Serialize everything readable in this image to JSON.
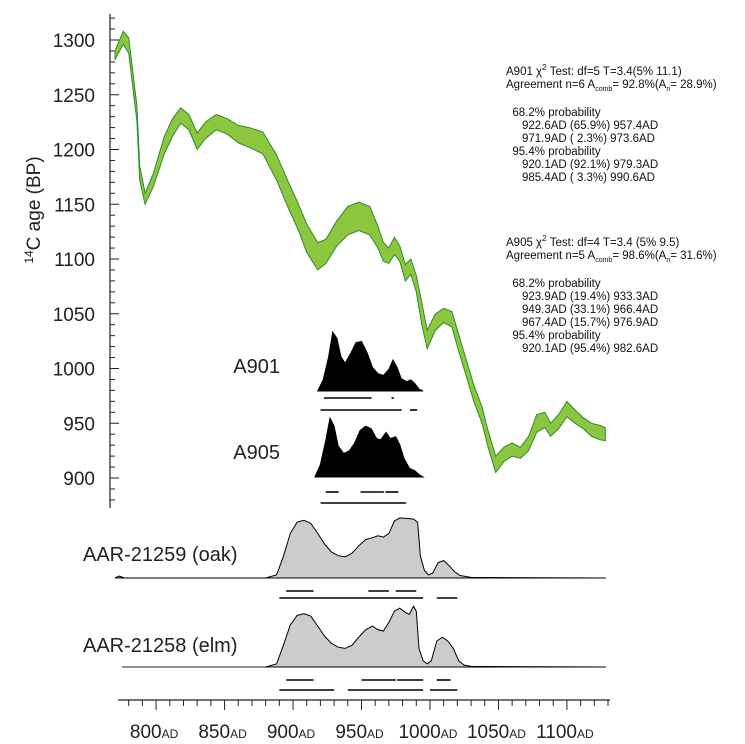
{
  "chart_data": {
    "type": "area",
    "title": "",
    "ylabel": {
      "sup": "14",
      "text": "C age (BP)"
    },
    "xlabel": "",
    "x_range": [
      770,
      1130
    ],
    "y_range": [
      860,
      1320
    ],
    "y_ticks": [
      900,
      950,
      1000,
      1050,
      1100,
      1150,
      1200,
      1250,
      1300
    ],
    "x_ticks": [
      {
        "value": 800,
        "num": "800",
        "suffix": "AD"
      },
      {
        "value": 850,
        "num": "850",
        "suffix": "AD"
      },
      {
        "value": 900,
        "num": "900",
        "suffix": "AD"
      },
      {
        "value": 950,
        "num": "950",
        "suffix": "AD"
      },
      {
        "value": 1000,
        "num": "1000",
        "suffix": "AD"
      },
      {
        "value": 1050,
        "num": "1050",
        "suffix": "AD"
      },
      {
        "value": 1100,
        "num": "1100",
        "suffix": "AD"
      }
    ],
    "calibration_curve": {
      "color": "#8cc63f",
      "edge_color": "#2e8b2e",
      "points": [
        [
          770,
          1290,
          1282
        ],
        [
          776,
          1308,
          1296
        ],
        [
          780,
          1302,
          1288
        ],
        [
          786,
          1240,
          1226
        ],
        [
          788,
          1185,
          1172
        ],
        [
          792,
          1160,
          1150
        ],
        [
          798,
          1178,
          1166
        ],
        [
          806,
          1212,
          1196
        ],
        [
          812,
          1228,
          1212
        ],
        [
          818,
          1238,
          1224
        ],
        [
          824,
          1232,
          1218
        ],
        [
          830,
          1215,
          1200
        ],
        [
          836,
          1225,
          1210
        ],
        [
          844,
          1232,
          1218
        ],
        [
          852,
          1228,
          1214
        ],
        [
          860,
          1222,
          1206
        ],
        [
          868,
          1220,
          1202
        ],
        [
          878,
          1216,
          1196
        ],
        [
          888,
          1195,
          1172
        ],
        [
          896,
          1172,
          1148
        ],
        [
          904,
          1150,
          1126
        ],
        [
          910,
          1132,
          1106
        ],
        [
          918,
          1115,
          1090
        ],
        [
          924,
          1118,
          1096
        ],
        [
          932,
          1135,
          1112
        ],
        [
          940,
          1148,
          1122
        ],
        [
          948,
          1152,
          1126
        ],
        [
          956,
          1148,
          1122
        ],
        [
          962,
          1130,
          1110
        ],
        [
          966,
          1115,
          1098
        ],
        [
          970,
          1110,
          1096
        ],
        [
          974,
          1120,
          1104
        ],
        [
          978,
          1112,
          1098
        ],
        [
          982,
          1095,
          1080
        ],
        [
          986,
          1100,
          1086
        ],
        [
          990,
          1085,
          1070
        ],
        [
          994,
          1060,
          1040
        ],
        [
          998,
          1035,
          1018
        ],
        [
          1004,
          1050,
          1035
        ],
        [
          1010,
          1055,
          1042
        ],
        [
          1016,
          1052,
          1038
        ],
        [
          1020,
          1035,
          1020
        ],
        [
          1026,
          1010,
          995
        ],
        [
          1032,
          985,
          970
        ],
        [
          1038,
          965,
          950
        ],
        [
          1042,
          945,
          930
        ],
        [
          1048,
          920,
          905
        ],
        [
          1054,
          928,
          915
        ],
        [
          1060,
          932,
          920
        ],
        [
          1066,
          928,
          918
        ],
        [
          1072,
          938,
          925
        ],
        [
          1078,
          958,
          942
        ],
        [
          1084,
          960,
          946
        ],
        [
          1088,
          950,
          938
        ],
        [
          1094,
          958,
          945
        ],
        [
          1100,
          970,
          956
        ],
        [
          1106,
          962,
          950
        ],
        [
          1112,
          955,
          945
        ],
        [
          1118,
          950,
          938
        ],
        [
          1124,
          948,
          935
        ],
        [
          1128,
          946,
          934
        ]
      ]
    },
    "distributions": [
      {
        "name": "A901",
        "color": "#000000",
        "points": [
          [
            918,
            0
          ],
          [
            922,
            0.18
          ],
          [
            926,
            0.55
          ],
          [
            929,
            0.95
          ],
          [
            932,
            0.85
          ],
          [
            935,
            0.55
          ],
          [
            938,
            0.45
          ],
          [
            942,
            0.6
          ],
          [
            946,
            0.78
          ],
          [
            950,
            0.8
          ],
          [
            954,
            0.62
          ],
          [
            958,
            0.38
          ],
          [
            962,
            0.28
          ],
          [
            966,
            0.25
          ],
          [
            970,
            0.35
          ],
          [
            973,
            0.5
          ],
          [
            976,
            0.38
          ],
          [
            979,
            0.2
          ],
          [
            983,
            0.15
          ],
          [
            986,
            0.18
          ],
          [
            989,
            0.12
          ],
          [
            992,
            0.03
          ],
          [
            995,
            0
          ]
        ],
        "ranges_68": [
          [
            922.6,
            957.4
          ],
          [
            971.9,
            973.6
          ]
        ],
        "ranges_95": [
          [
            920.1,
            979.3
          ],
          [
            985.4,
            990.6
          ]
        ],
        "info": [
          {
            "pre": "A901 χ",
            "sup": "2",
            "post": " Test: df=5 T=3.4(5% 11.1)"
          },
          {
            "pre": "Agreement n=6 A",
            "sub": "comb",
            "mid": "= 92.8%(A",
            "sub2": "n",
            "post": "= 28.9%)"
          },
          {
            "text": ""
          },
          {
            "text": "  68.2% probability"
          },
          {
            "text": "     922.6AD (65.9%) 957.4AD"
          },
          {
            "text": "     971.9AD ( 2.3%) 973.6AD"
          },
          {
            "text": "  95.4% probability"
          },
          {
            "text": "     920.1AD (92.1%) 979.3AD"
          },
          {
            "text": "     985.4AD ( 3.3%) 990.6AD"
          }
        ]
      },
      {
        "name": "A905",
        "color": "#000000",
        "points": [
          [
            916,
            0
          ],
          [
            920,
            0.2
          ],
          [
            924,
            0.6
          ],
          [
            927,
            0.95
          ],
          [
            930,
            0.82
          ],
          [
            933,
            0.5
          ],
          [
            937,
            0.38
          ],
          [
            941,
            0.42
          ],
          [
            945,
            0.55
          ],
          [
            949,
            0.75
          ],
          [
            953,
            0.82
          ],
          [
            957,
            0.78
          ],
          [
            961,
            0.62
          ],
          [
            964,
            0.6
          ],
          [
            968,
            0.72
          ],
          [
            971,
            0.62
          ],
          [
            975,
            0.65
          ],
          [
            978,
            0.52
          ],
          [
            981,
            0.3
          ],
          [
            985,
            0.14
          ],
          [
            989,
            0.1
          ],
          [
            992,
            0.04
          ],
          [
            995,
            0
          ]
        ],
        "ranges_68": [
          [
            923.9,
            933.3
          ],
          [
            949.3,
            966.4
          ],
          [
            967.4,
            976.9
          ]
        ],
        "ranges_95": [
          [
            920.1,
            982.6
          ]
        ],
        "info": [
          {
            "pre": "A905 χ",
            "sup": "2",
            "post": " Test: df=4 T=3.4 (5% 9.5)"
          },
          {
            "pre": "Agreement n=5 A",
            "sub": "comb",
            "mid": "= 98.6%(A",
            "sub2": "n",
            "post": "= 31.6%)"
          },
          {
            "text": ""
          },
          {
            "text": "  68.2% probability"
          },
          {
            "text": "     923.9AD (19.4%) 933.3AD"
          },
          {
            "text": "     949.3AD (33.1%) 966.4AD"
          },
          {
            "text": "     967.4AD (15.7%) 976.9AD"
          },
          {
            "text": "  95.4% probability"
          },
          {
            "text": "     920.1AD (95.4%) 982.6AD"
          }
        ]
      },
      {
        "name": "AAR-21259 (oak)",
        "color": "#cccccc",
        "points": [
          [
            770,
            0
          ],
          [
            773,
            0.03
          ],
          [
            777,
            0
          ],
          [
            880,
            0
          ],
          [
            888,
            0.05
          ],
          [
            893,
            0.35
          ],
          [
            898,
            0.72
          ],
          [
            903,
            0.9
          ],
          [
            908,
            0.93
          ],
          [
            913,
            0.88
          ],
          [
            918,
            0.72
          ],
          [
            923,
            0.55
          ],
          [
            928,
            0.42
          ],
          [
            933,
            0.36
          ],
          [
            938,
            0.34
          ],
          [
            943,
            0.4
          ],
          [
            948,
            0.52
          ],
          [
            953,
            0.62
          ],
          [
            958,
            0.65
          ],
          [
            962,
            0.68
          ],
          [
            966,
            0.66
          ],
          [
            970,
            0.72
          ],
          [
            974,
            0.92
          ],
          [
            978,
            0.97
          ],
          [
            984,
            0.96
          ],
          [
            988,
            0.95
          ],
          [
            991,
            0.9
          ],
          [
            993,
            0.35
          ],
          [
            996,
            0.12
          ],
          [
            999,
            0.05
          ],
          [
            1002,
            0.08
          ],
          [
            1006,
            0.25
          ],
          [
            1010,
            0.28
          ],
          [
            1014,
            0.2
          ],
          [
            1018,
            0.1
          ],
          [
            1022,
            0.04
          ],
          [
            1030,
            0.01
          ],
          [
            1128,
            0
          ]
        ],
        "ranges_68": [
          [
            895,
            915
          ],
          [
            955,
            970
          ],
          [
            975,
            990
          ]
        ],
        "ranges_95": [
          [
            890,
            995
          ],
          [
            1005,
            1020
          ]
        ]
      },
      {
        "name": "AAR-21258 (elm)",
        "color": "#cccccc",
        "points": [
          [
            880,
            0
          ],
          [
            888,
            0.05
          ],
          [
            893,
            0.35
          ],
          [
            898,
            0.68
          ],
          [
            903,
            0.83
          ],
          [
            908,
            0.86
          ],
          [
            913,
            0.82
          ],
          [
            918,
            0.66
          ],
          [
            923,
            0.5
          ],
          [
            928,
            0.38
          ],
          [
            933,
            0.32
          ],
          [
            938,
            0.3
          ],
          [
            943,
            0.35
          ],
          [
            948,
            0.48
          ],
          [
            953,
            0.6
          ],
          [
            958,
            0.66
          ],
          [
            962,
            0.6
          ],
          [
            966,
            0.58
          ],
          [
            970,
            0.72
          ],
          [
            974,
            0.9
          ],
          [
            978,
            0.95
          ],
          [
            982,
            0.88
          ],
          [
            985,
            0.85
          ],
          [
            988,
            0.98
          ],
          [
            990,
            0.9
          ],
          [
            992,
            0.3
          ],
          [
            995,
            0.1
          ],
          [
            998,
            0.05
          ],
          [
            1001,
            0.1
          ],
          [
            1005,
            0.42
          ],
          [
            1009,
            0.48
          ],
          [
            1013,
            0.42
          ],
          [
            1017,
            0.3
          ],
          [
            1021,
            0.1
          ],
          [
            1025,
            0.03
          ],
          [
            1030,
            0.01
          ],
          [
            1128,
            0
          ]
        ],
        "ranges_68": [
          [
            895,
            915
          ],
          [
            950,
            975
          ],
          [
            976,
            995
          ],
          [
            1005,
            1015
          ]
        ],
        "ranges_95": [
          [
            890,
            930
          ],
          [
            940,
            995
          ],
          [
            1000,
            1020
          ]
        ]
      }
    ]
  }
}
